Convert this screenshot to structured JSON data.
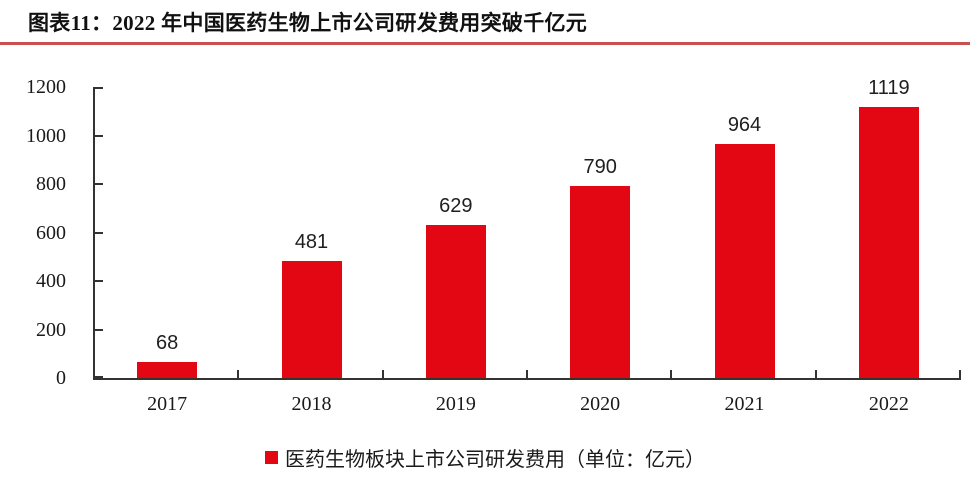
{
  "header": {
    "title": "图表11：2022 年中国医药生物上市公司研发费用突破千亿元"
  },
  "chart_data": {
    "type": "bar",
    "title": "2022 年中国医药生物上市公司研发费用突破千亿元",
    "categories": [
      "2017",
      "2018",
      "2019",
      "2020",
      "2021",
      "2022"
    ],
    "values": [
      68,
      481,
      629,
      790,
      964,
      1119
    ],
    "series_name": "医药生物板块上市公司研发费用（单位：亿元）",
    "xlabel": "",
    "ylabel": "",
    "ylim": [
      0,
      1200
    ],
    "yticks": [
      0,
      200,
      400,
      600,
      800,
      1000,
      1200
    ],
    "grid": false,
    "legend_position": "bottom",
    "value_labels": true
  },
  "legend": {
    "label": "医药生物板块上市公司研发费用（单位：亿元）"
  },
  "colors": {
    "bar": "#E30613",
    "divider": "#C9504E",
    "axis": "#333333",
    "text": "#1A1A1A"
  }
}
